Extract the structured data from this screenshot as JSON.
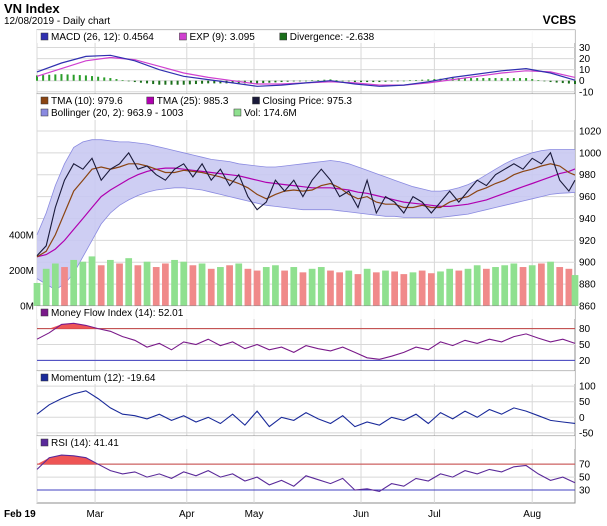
{
  "header": {
    "title": "VN Index",
    "subtitle": "12/08/2019 - Daily chart",
    "source": "VCBS"
  },
  "colors": {
    "panel_bg": "#ffffff",
    "frame": "#8c8c8c",
    "grid": "#d8d8d8",
    "price_line": "#1a1a3a",
    "tma10": "#8b4513",
    "tma25": "#b000b0",
    "macd": "#3030b0",
    "exp": "#d040d0",
    "divergence_pos": "#2a9d2a",
    "divergence_neg": "#1a6e1a",
    "boll_fill": "#c9c9f2",
    "boll_edge": "#8a8ae0",
    "vol_up": "#8fe08f",
    "vol_down": "#f08a8a",
    "mfi_line": "#7a1a8a",
    "momentum_line": "#1a2a9a",
    "rsi_line": "#5a2a9a",
    "overbought": "#c04040",
    "oversold": "#4040c0",
    "overbought_fill": "#ee5555"
  },
  "x_axis": {
    "months": [
      "Feb 19",
      "Mar",
      "Apr",
      "May",
      "Jun",
      "Jul",
      "Aug"
    ],
    "month_day_index": [
      0,
      19,
      49,
      71,
      106,
      130,
      162
    ]
  },
  "chart_data": [
    {
      "type": "line",
      "panel": "macd",
      "legend": [
        {
          "label": "MACD (26, 12): 0.4564",
          "color_key": "macd"
        },
        {
          "label": "EXP (9): 3.095",
          "color_key": "exp"
        },
        {
          "label": "Divergence: -2.638",
          "color_key": "divergence_neg"
        }
      ],
      "y_ticks": [
        "30",
        "20",
        "10",
        "0",
        "-10"
      ],
      "y_tick_values": [
        30,
        20,
        10,
        0,
        -10
      ],
      "ylim": [
        -12,
        35
      ],
      "x": [
        0,
        8,
        16,
        24,
        32,
        40,
        48,
        56,
        64,
        72,
        80,
        88,
        96,
        104,
        112,
        120,
        128,
        136,
        144,
        152,
        160,
        168,
        176
      ],
      "series": [
        {
          "key": "macd",
          "values": [
            8,
            16,
            22,
            23,
            18,
            10,
            4,
            1,
            -2,
            -5,
            -4,
            -2,
            0,
            -3,
            -5,
            -4,
            -1,
            3,
            6,
            9,
            11,
            7,
            0.5
          ]
        },
        {
          "key": "exp",
          "values": [
            4,
            11,
            18,
            21,
            19,
            13,
            7,
            3,
            0,
            -3,
            -3,
            -2,
            -1,
            -2,
            -4,
            -4,
            -2,
            1,
            4,
            7,
            9,
            8,
            3
          ]
        }
      ]
    },
    {
      "type": "line",
      "panel": "price",
      "legend": [
        {
          "label": "TMA (10): 979.6",
          "color_key": "tma10"
        },
        {
          "label": "TMA (25): 985.3",
          "color_key": "tma25"
        },
        {
          "label": "Closing Price: 975.3",
          "color_key": "price_line"
        },
        {
          "label": "Bollinger (20, 2): 963.9 - 1003",
          "color_key": "boll_edge"
        },
        {
          "label": "Vol: 174.6M",
          "color_key": "vol_up"
        }
      ],
      "y_ticks": [
        "1020",
        "1000",
        "980",
        "960",
        "940",
        "920",
        "900",
        "880",
        "860"
      ],
      "y_tick_values": [
        1020,
        1000,
        980,
        960,
        940,
        920,
        900,
        880,
        860
      ],
      "ylim": [
        860,
        1030
      ],
      "vol_ticks": [
        "400M",
        "200M",
        "0M"
      ],
      "vol_tick_values": [
        400,
        200,
        0
      ],
      "vol_max": 1050,
      "x": [
        0,
        3,
        6,
        9,
        12,
        15,
        18,
        21,
        24,
        27,
        30,
        33,
        36,
        39,
        42,
        45,
        48,
        51,
        54,
        57,
        60,
        63,
        66,
        69,
        72,
        75,
        78,
        81,
        84,
        87,
        90,
        93,
        96,
        99,
        102,
        105,
        108,
        111,
        114,
        117,
        120,
        123,
        126,
        129,
        132,
        135,
        138,
        141,
        144,
        147,
        150,
        153,
        156,
        159,
        162,
        165,
        168,
        171,
        174,
        176
      ],
      "close": [
        906,
        915,
        950,
        975,
        990,
        985,
        995,
        975,
        985,
        990,
        1000,
        985,
        988,
        980,
        975,
        985,
        990,
        978,
        990,
        975,
        985,
        970,
        980,
        960,
        948,
        955,
        975,
        965,
        975,
        960,
        975,
        985,
        975,
        960,
        965,
        950,
        975,
        945,
        960,
        955,
        945,
        960,
        955,
        945,
        955,
        965,
        955,
        965,
        975,
        970,
        980,
        985,
        990,
        985,
        995,
        990,
        1000,
        975,
        965,
        975
      ],
      "tma10": [
        905,
        910,
        925,
        945,
        965,
        975,
        985,
        987,
        985,
        987,
        990,
        990,
        988,
        985,
        982,
        982,
        984,
        983,
        982,
        980,
        978,
        975,
        972,
        968,
        962,
        958,
        962,
        965,
        966,
        965,
        966,
        970,
        972,
        968,
        962,
        958,
        960,
        955,
        953,
        953,
        950,
        950,
        952,
        950,
        950,
        955,
        958,
        960,
        965,
        968,
        972,
        975,
        980,
        983,
        985,
        988,
        990,
        988,
        982,
        979.6
      ],
      "tma25": [
        905,
        907,
        912,
        920,
        930,
        940,
        950,
        960,
        966,
        971,
        976,
        980,
        983,
        985,
        986,
        986,
        985,
        984,
        983,
        982,
        981,
        980,
        979,
        977,
        975,
        973,
        972,
        971,
        970,
        969,
        968,
        968,
        968,
        967,
        966,
        964,
        963,
        961,
        959,
        957,
        955,
        954,
        953,
        952,
        951,
        951,
        952,
        953,
        955,
        957,
        960,
        963,
        966,
        969,
        972,
        975,
        978,
        981,
        983,
        985.3
      ],
      "boll_upper": [
        925,
        945,
        970,
        990,
        1005,
        1010,
        1012,
        1012,
        1011,
        1010,
        1010,
        1009,
        1008,
        1006,
        1004,
        1002,
        1000,
        998,
        996,
        994,
        993,
        992,
        990,
        989,
        988,
        987,
        987,
        988,
        989,
        990,
        991,
        992,
        993,
        992,
        990,
        987,
        984,
        981,
        978,
        975,
        972,
        969,
        967,
        965,
        965,
        966,
        968,
        971,
        975,
        980,
        985,
        990,
        994,
        997,
        1000,
        1002,
        1003,
        1003,
        1003,
        1003
      ],
      "boll_lower": [
        885,
        880,
        875,
        880,
        890,
        905,
        920,
        935,
        945,
        952,
        957,
        961,
        964,
        966,
        967,
        968,
        968,
        967,
        966,
        964,
        962,
        960,
        958,
        956,
        954,
        952,
        951,
        950,
        949,
        948,
        948,
        948,
        948,
        947,
        946,
        945,
        944,
        943,
        942,
        942,
        941,
        941,
        941,
        941,
        941,
        942,
        943,
        944,
        946,
        948,
        950,
        952,
        954,
        956,
        958,
        960,
        962,
        963,
        963.5,
        963.9
      ],
      "volume": [
        130,
        210,
        240,
        220,
        260,
        250,
        280,
        230,
        260,
        240,
        270,
        230,
        250,
        220,
        240,
        260,
        250,
        230,
        240,
        210,
        220,
        230,
        240,
        210,
        200,
        220,
        230,
        200,
        220,
        190,
        210,
        220,
        200,
        190,
        200,
        180,
        210,
        190,
        200,
        195,
        180,
        190,
        200,
        185,
        195,
        210,
        200,
        210,
        230,
        210,
        220,
        230,
        240,
        220,
        230,
        240,
        250,
        220,
        210,
        174.6
      ],
      "volume_up": [
        true,
        true,
        true,
        false,
        true,
        true,
        true,
        false,
        true,
        false,
        true,
        false,
        true,
        false,
        false,
        true,
        true,
        false,
        true,
        false,
        true,
        false,
        true,
        false,
        false,
        true,
        true,
        false,
        true,
        false,
        true,
        true,
        false,
        false,
        true,
        false,
        true,
        false,
        true,
        false,
        false,
        true,
        false,
        false,
        true,
        true,
        false,
        true,
        true,
        false,
        true,
        true,
        true,
        false,
        true,
        false,
        true,
        false,
        false,
        true
      ]
    },
    {
      "type": "line",
      "panel": "mfi",
      "legend": [
        {
          "label": "Money Flow Index (14): 52.01",
          "color_key": "mfi_line"
        }
      ],
      "y_ticks": [
        "80",
        "50",
        "20"
      ],
      "y_tick_values": [
        80,
        50,
        20
      ],
      "ylim": [
        0,
        100
      ],
      "overbought": 80,
      "oversold": 20,
      "x": [
        0,
        4,
        8,
        12,
        16,
        20,
        24,
        28,
        32,
        36,
        40,
        44,
        48,
        52,
        56,
        60,
        64,
        68,
        72,
        76,
        80,
        84,
        88,
        92,
        96,
        100,
        104,
        108,
        112,
        116,
        120,
        124,
        128,
        132,
        136,
        140,
        144,
        148,
        152,
        156,
        160,
        164,
        168,
        172,
        176
      ],
      "values": [
        60,
        72,
        88,
        90,
        86,
        80,
        75,
        65,
        58,
        45,
        52,
        40,
        55,
        50,
        60,
        48,
        55,
        42,
        50,
        40,
        45,
        35,
        48,
        42,
        38,
        45,
        35,
        25,
        22,
        28,
        35,
        45,
        40,
        55,
        48,
        58,
        52,
        60,
        55,
        65,
        70,
        62,
        55,
        60,
        52.01
      ]
    },
    {
      "type": "line",
      "panel": "momentum",
      "legend": [
        {
          "label": "Momentum (12): -19.64",
          "color_key": "momentum_line"
        }
      ],
      "y_ticks": [
        "100",
        "50",
        "0",
        "-50"
      ],
      "y_tick_values": [
        100,
        50,
        0,
        -50
      ],
      "ylim": [
        -60,
        110
      ],
      "x": [
        0,
        4,
        8,
        12,
        16,
        20,
        24,
        28,
        32,
        36,
        40,
        44,
        48,
        52,
        56,
        60,
        64,
        68,
        72,
        76,
        80,
        84,
        88,
        92,
        96,
        100,
        104,
        108,
        112,
        116,
        120,
        124,
        128,
        132,
        136,
        140,
        144,
        148,
        152,
        156,
        160,
        164,
        168,
        172,
        176
      ],
      "values": [
        10,
        40,
        60,
        75,
        85,
        60,
        30,
        10,
        5,
        -5,
        10,
        -10,
        5,
        -15,
        0,
        -20,
        10,
        -25,
        20,
        -30,
        0,
        -10,
        15,
        -5,
        -20,
        5,
        -30,
        -15,
        -25,
        0,
        -10,
        10,
        -20,
        15,
        -5,
        20,
        0,
        25,
        10,
        30,
        20,
        5,
        -10,
        -15,
        -19.64
      ]
    },
    {
      "type": "line",
      "panel": "rsi",
      "legend": [
        {
          "label": "RSI (14): 41.41",
          "color_key": "rsi_line"
        }
      ],
      "y_ticks": [
        "70",
        "50",
        "30"
      ],
      "y_tick_values": [
        70,
        50,
        30
      ],
      "ylim": [
        10,
        95
      ],
      "overbought": 70,
      "oversold": 30,
      "x": [
        0,
        4,
        8,
        12,
        16,
        20,
        24,
        28,
        32,
        36,
        40,
        44,
        48,
        52,
        56,
        60,
        64,
        68,
        72,
        76,
        80,
        84,
        88,
        92,
        96,
        100,
        104,
        108,
        112,
        116,
        120,
        124,
        128,
        132,
        136,
        140,
        144,
        148,
        152,
        156,
        160,
        164,
        168,
        172,
        176
      ],
      "values": [
        62,
        80,
        84,
        83,
        80,
        70,
        60,
        55,
        58,
        50,
        55,
        48,
        58,
        52,
        60,
        50,
        55,
        44,
        50,
        38,
        45,
        36,
        52,
        46,
        40,
        48,
        30,
        32,
        28,
        40,
        36,
        48,
        44,
        55,
        50,
        60,
        55,
        62,
        58,
        66,
        68,
        55,
        45,
        50,
        41.41
      ]
    }
  ]
}
